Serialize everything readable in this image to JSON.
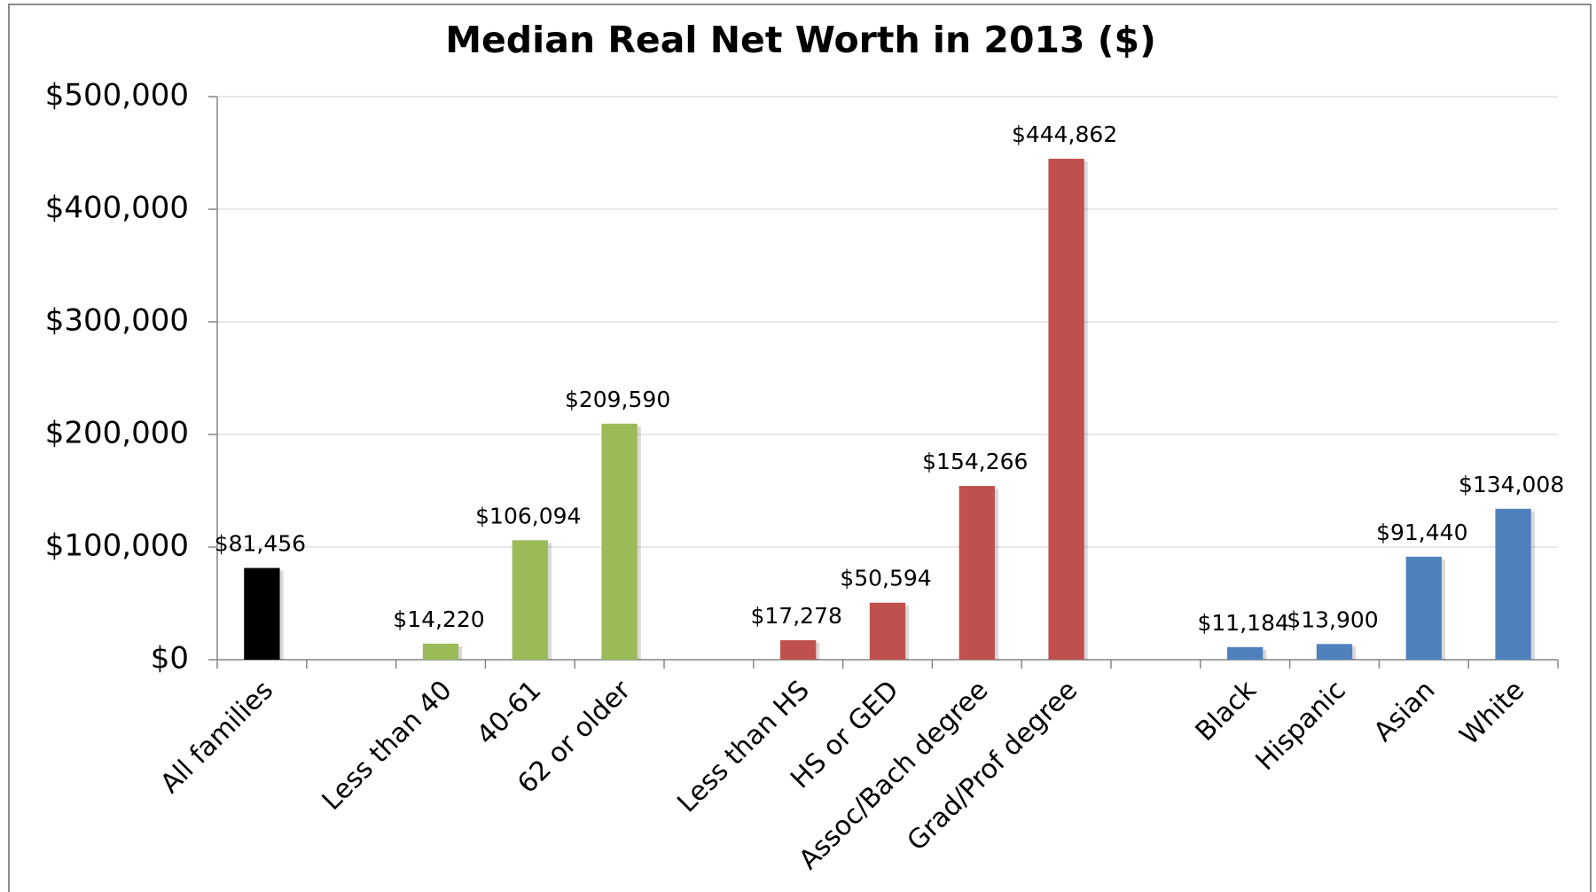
{
  "chart_data": {
    "type": "bar",
    "title": "Median Real Net Worth in 2013 ($)",
    "categories": [
      "All families",
      null,
      "Less than 40",
      "40-61",
      "62 or older",
      null,
      "Less than HS",
      "HS or GED",
      "Assoc/Bach degree",
      "Grad/Prof degree",
      null,
      "Black",
      "Hispanic",
      "Asian",
      "White"
    ],
    "values": [
      81456,
      null,
      14220,
      106094,
      209590,
      null,
      17278,
      50594,
      154266,
      444862,
      null,
      11184,
      13900,
      91440,
      134008
    ],
    "value_labels": [
      "$81,456",
      null,
      "$14,220",
      "$106,094",
      "$209,590",
      null,
      "$17,278",
      "$50,594",
      "$154,266",
      "$444,862",
      null,
      "$11,184",
      "$13,900",
      "$91,440",
      "$134,008"
    ],
    "colors": [
      "#000000",
      null,
      "#9bbb59",
      "#9bbb59",
      "#9bbb59",
      null,
      "#c0504d",
      "#c0504d",
      "#c0504d",
      "#c0504d",
      null,
      "#4f81bd",
      "#4f81bd",
      "#4f81bd",
      "#4f81bd"
    ],
    "ylim": [
      0,
      500000
    ],
    "yticks": [
      {
        "value": 0,
        "label": "$0"
      },
      {
        "value": 100000,
        "label": "$100,000"
      },
      {
        "value": 200000,
        "label": "$200,000"
      },
      {
        "value": 300000,
        "label": "$300,000"
      },
      {
        "value": 400000,
        "label": "$400,000"
      },
      {
        "value": 500000,
        "label": "$500,000"
      }
    ],
    "grid": true
  }
}
